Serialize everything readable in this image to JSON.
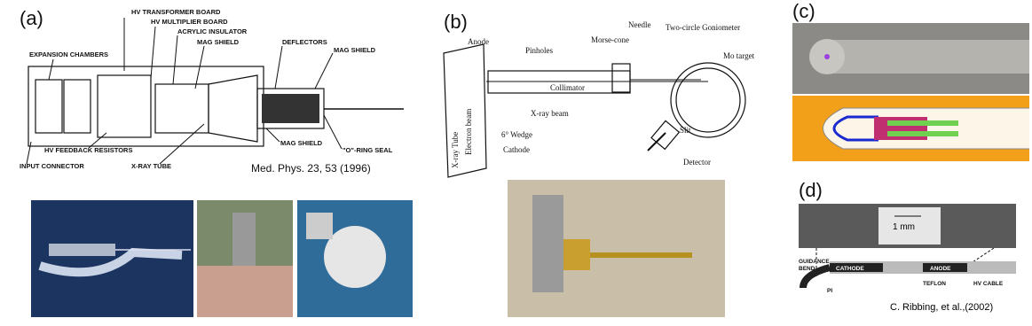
{
  "panel_a": {
    "label": "(a)",
    "callouts": [
      "HV TRANSFORMER BOARD",
      "HV MULTIPLIER BOARD",
      "ACRYLIC INSULATOR",
      "MAG SHIELD",
      "DEFLECTORS",
      "MAG SHIELD",
      "EXPANSION CHAMBERS",
      "HV FEEDBACK RESISTORS",
      "MAG SHIELD",
      "\"O\"-RING SEAL",
      "INPUT CONNECTOR",
      "X-RAY TUBE"
    ],
    "citation": "Med. Phys. 23, 53 (1996)"
  },
  "panel_b": {
    "label": "(b)",
    "callouts": [
      "Anode",
      "Pinholes",
      "Morse-cone",
      "Needle",
      "Two-circle Goniometer",
      "Mo target",
      "Collimator",
      "X-ray beam",
      "6° Wedge",
      "Slit",
      "Detector",
      "Cathode"
    ],
    "rotated": [
      "X-ray Tube",
      "Electron beam"
    ]
  },
  "panel_c": {
    "label": "(c)"
  },
  "panel_d": {
    "label": "(d)",
    "scale": "1 mm",
    "callouts": [
      "GUIDANCE",
      "BEND",
      "CATHODE",
      "ANODE",
      "PI",
      "TEFLON",
      "HV CABLE"
    ],
    "citation": "C. Ribbing, et al.,(2002)"
  }
}
